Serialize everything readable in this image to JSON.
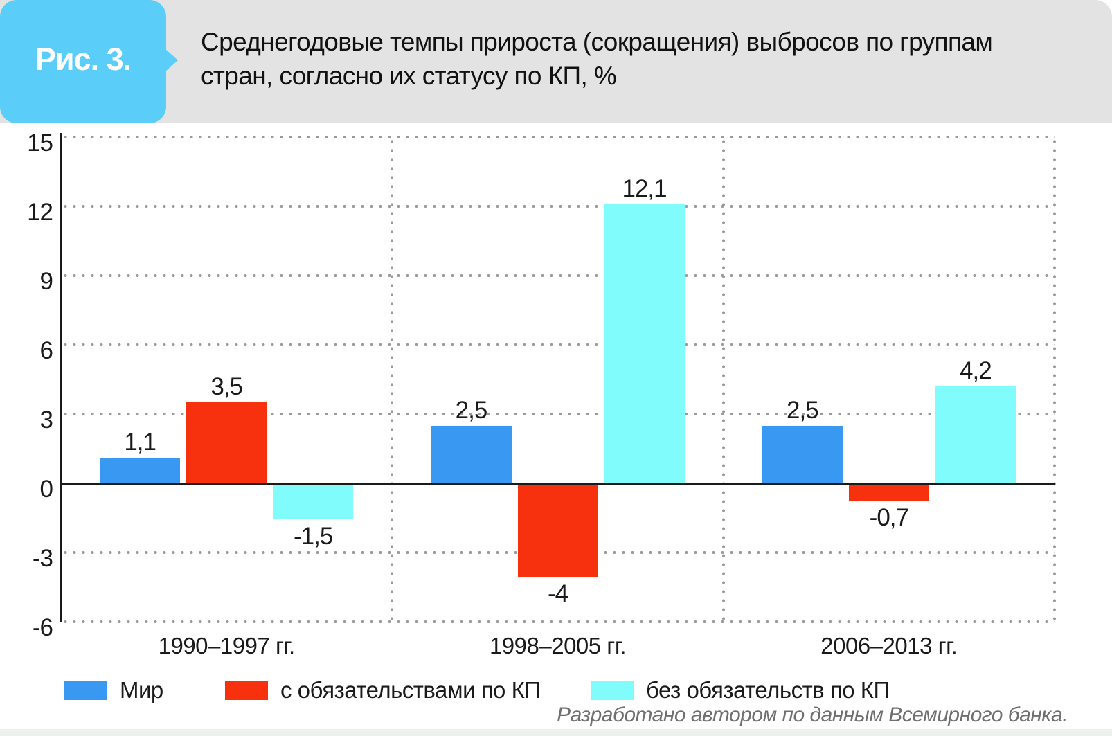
{
  "figure_label": "Рис. 3.",
  "title_lines": [
    "Среднегодовые темпы прироста (сокращения) выбросов по группам",
    "стран, согласно их статусу по КП, %"
  ],
  "source_note": "Разработано автором по данным Всемирного банка.",
  "colors": {
    "header_tab": "#5acdf8",
    "header_band": "#e3e3e3",
    "series_world": "#3898f2",
    "series_with_commitments": "#f7310e",
    "series_without_commitments": "#80fcfc",
    "grid": "#9a9a9a",
    "axis": "#1a1a1a",
    "footer_text": "#6f6f6f"
  },
  "chart_data": {
    "type": "bar",
    "title": "Среднегодовые темпы прироста (сокращения) выбросов по группам стран, согласно их статусу по КП, %",
    "categories": [
      "1990–1997 гг.",
      "1998–2005 гг.",
      "2006–2013 гг."
    ],
    "series": [
      {
        "name": "Мир",
        "color_key": "series_world",
        "values": [
          1.1,
          2.5,
          2.5
        ],
        "labels": [
          "1,1",
          "2,5",
          "2,5"
        ]
      },
      {
        "name": "с обязательствами по КП",
        "color_key": "series_with_commitments",
        "values": [
          3.5,
          -4,
          -0.7
        ],
        "labels": [
          "3,5",
          "-4",
          "-0,7"
        ]
      },
      {
        "name": "без обязательств по КП",
        "color_key": "series_without_commitments",
        "values": [
          -1.5,
          12.1,
          4.2
        ],
        "labels": [
          "-1,5",
          "12,1",
          "4,2"
        ]
      }
    ],
    "xlabel": "",
    "ylabel": "",
    "ylim": [
      -6,
      15
    ],
    "yticks": [
      15,
      12,
      9,
      6,
      3,
      0,
      -3,
      -6
    ],
    "grid": "dotted horizontal gridlines, dotted vertical group separators",
    "legend_position": "bottom"
  },
  "legend": [
    {
      "label": "Мир",
      "color_key": "series_world"
    },
    {
      "label": "с обязательствами по КП",
      "color_key": "series_with_commitments"
    },
    {
      "label": "без обязательств по КП",
      "color_key": "series_without_commitments"
    }
  ]
}
